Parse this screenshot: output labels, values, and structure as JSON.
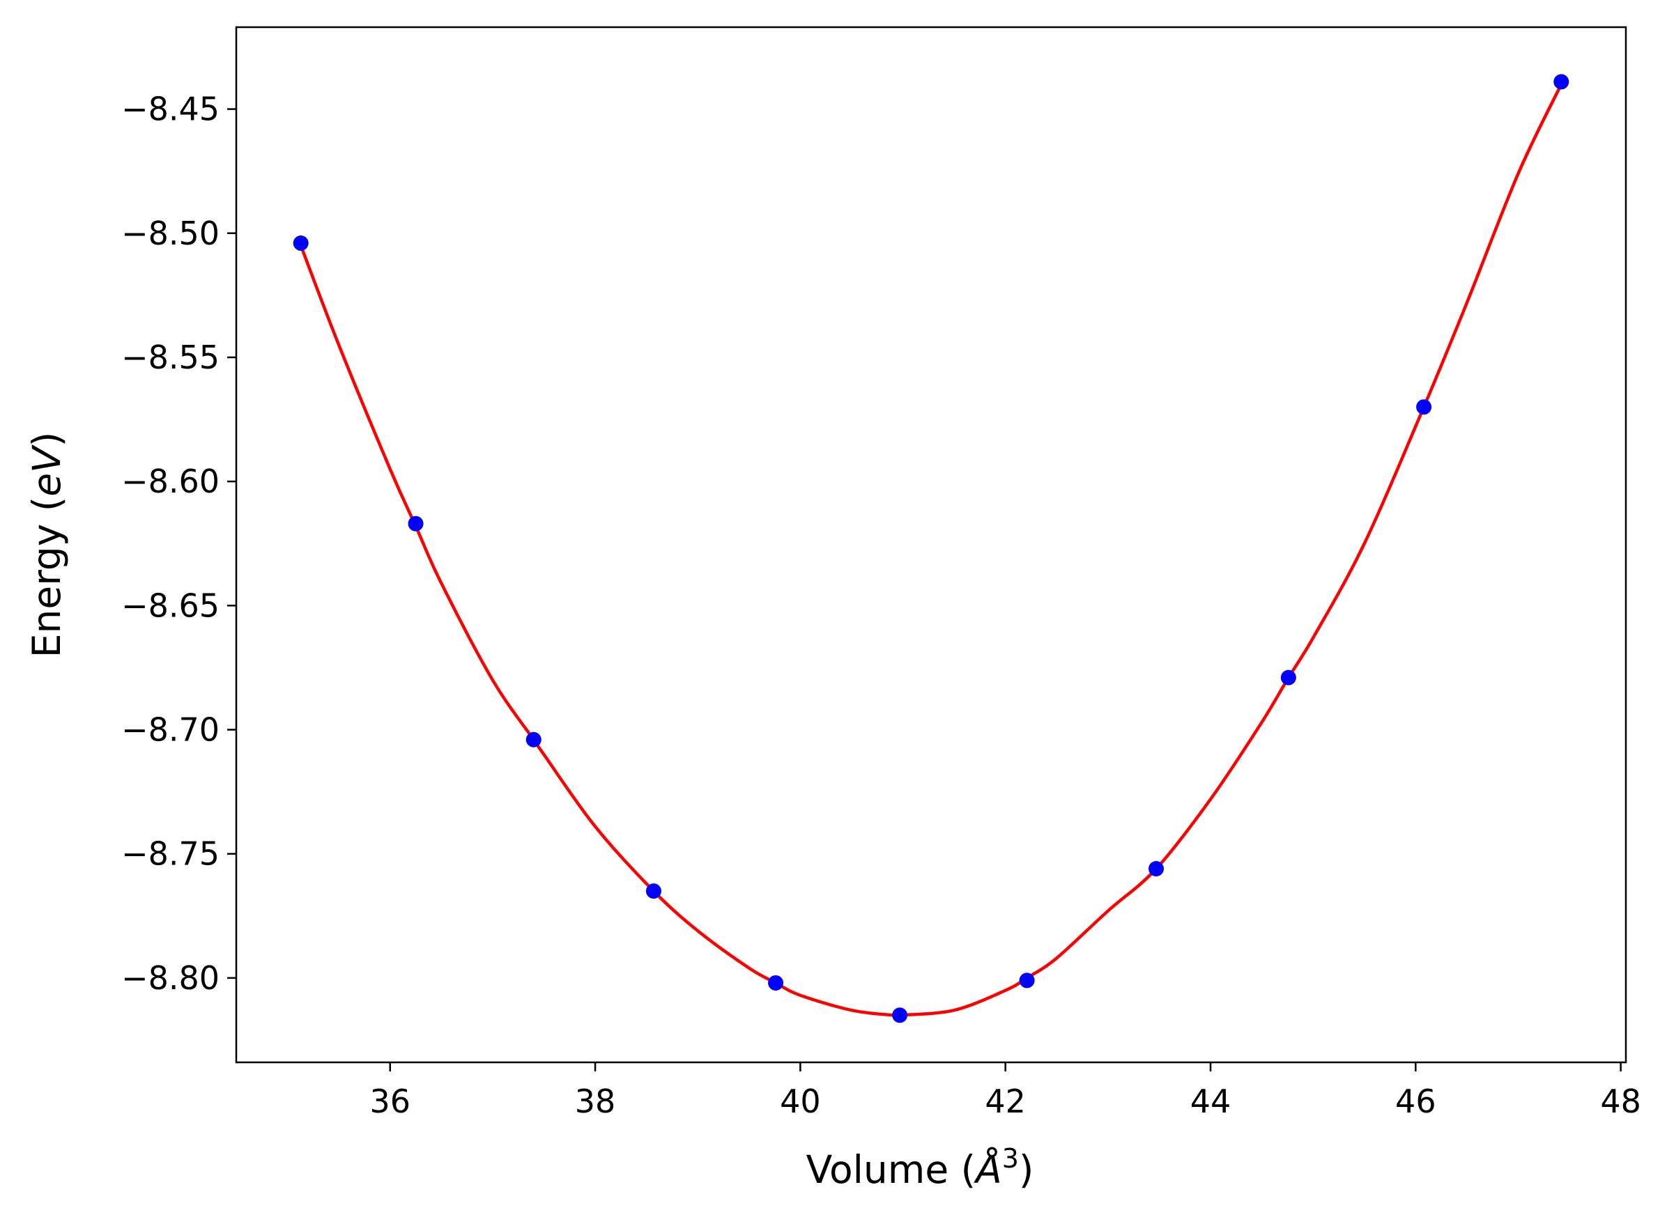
{
  "chart_data": {
    "type": "scatter",
    "title": "",
    "xlabel": "Volume",
    "xlabel_unit_base": "Å",
    "xlabel_unit_exp": "3",
    "ylabel": "Energy",
    "ylabel_unit": "eV",
    "xlim": [
      34.5,
      48.05
    ],
    "ylim": [
      -8.834,
      -8.417
    ],
    "xticks": [
      36,
      38,
      40,
      42,
      44,
      46,
      48
    ],
    "yticks": [
      -8.45,
      -8.5,
      -8.55,
      -8.6,
      -8.65,
      -8.7,
      -8.75,
      -8.8
    ],
    "xtick_labels": [
      "36",
      "38",
      "40",
      "42",
      "44",
      "46",
      "48"
    ],
    "ytick_labels": [
      "−8.45",
      "−8.50",
      "−8.55",
      "−8.60",
      "−8.65",
      "−8.70",
      "−8.75",
      "−8.80"
    ],
    "grid": false,
    "series": [
      {
        "kind": "points",
        "color": "#0000ff",
        "x": [
          35.13,
          36.25,
          37.4,
          38.57,
          39.76,
          40.97,
          42.21,
          43.47,
          44.76,
          46.08,
          47.42
        ],
        "y": [
          -8.504,
          -8.617,
          -8.704,
          -8.765,
          -8.802,
          -8.815,
          -8.801,
          -8.756,
          -8.679,
          -8.57,
          -8.439
        ]
      },
      {
        "kind": "fit-line",
        "color": "#ff0000",
        "x": [
          35.13,
          35.5,
          36.0,
          36.25,
          36.5,
          37.0,
          37.4,
          37.5,
          38.0,
          38.57,
          39.0,
          39.5,
          39.76,
          40.0,
          40.5,
          40.9,
          40.97,
          41.5,
          42.0,
          42.21,
          42.5,
          43.0,
          43.47,
          44.0,
          44.5,
          44.76,
          45.0,
          45.5,
          46.08,
          46.5,
          47.0,
          47.42
        ],
        "y": [
          -8.505,
          -8.545,
          -8.595,
          -8.618,
          -8.641,
          -8.68,
          -8.704,
          -8.71,
          -8.739,
          -8.765,
          -8.781,
          -8.796,
          -8.802,
          -8.807,
          -8.813,
          -8.815,
          -8.815,
          -8.813,
          -8.805,
          -8.8,
          -8.792,
          -8.773,
          -8.756,
          -8.728,
          -8.697,
          -8.679,
          -8.663,
          -8.625,
          -8.57,
          -8.528,
          -8.476,
          -8.44
        ]
      }
    ]
  }
}
